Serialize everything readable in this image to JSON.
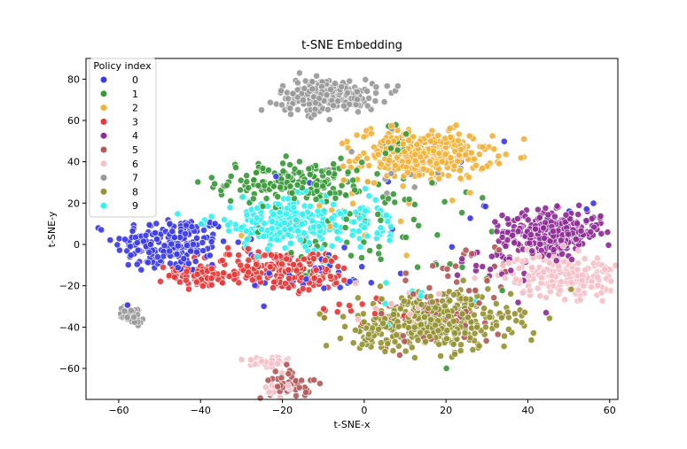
{
  "chart_data": {
    "type": "scatter",
    "title": "t-SNE Embedding",
    "xlabel": "t-SNE-x",
    "ylabel": "t-SNE-y",
    "xlim": [
      -68,
      62
    ],
    "ylim": [
      -75,
      90
    ],
    "x_ticks": [
      -60,
      -40,
      -20,
      0,
      20,
      40,
      60
    ],
    "y_ticks": [
      -60,
      -40,
      -20,
      0,
      20,
      40,
      60,
      80
    ],
    "x_tick_labels": [
      "−60",
      "−40",
      "−20",
      "0",
      "20",
      "40",
      "60"
    ],
    "y_tick_labels": [
      "−60",
      "−40",
      "−20",
      "0",
      "20",
      "40",
      "60",
      "80"
    ],
    "grid": false,
    "legend": {
      "title": "Policy index",
      "position": "top-left"
    },
    "series": [
      {
        "name": "0",
        "color": "#3b3bea",
        "clusters": [
          {
            "cx": -47,
            "cy": 0,
            "sx": 7,
            "sy": 7,
            "n": 200
          },
          {
            "cx": -12,
            "cy": -16,
            "sx": 8,
            "sy": 6,
            "n": 30
          },
          {
            "cx": 22,
            "cy": 15,
            "sx": 20,
            "sy": 15,
            "n": 20
          }
        ]
      },
      {
        "name": "1",
        "color": "#3a9a3a",
        "clusters": [
          {
            "cx": -18,
            "cy": 30,
            "sx": 9,
            "sy": 5,
            "n": 170
          },
          {
            "cx": -5,
            "cy": 10,
            "sx": 10,
            "sy": 10,
            "n": 50
          },
          {
            "cx": 8,
            "cy": 48,
            "sx": 3,
            "sy": 5,
            "n": 18
          },
          {
            "cx": 20,
            "cy": -5,
            "sx": 15,
            "sy": 20,
            "n": 25
          }
        ]
      },
      {
        "name": "2",
        "color": "#f2b23a",
        "clusters": [
          {
            "cx": 15,
            "cy": 43,
            "sx": 8,
            "sy": 6,
            "n": 320
          },
          {
            "cx": 8,
            "cy": 50,
            "sx": 4,
            "sy": 5,
            "n": 30
          },
          {
            "cx": -5,
            "cy": 15,
            "sx": 12,
            "sy": 10,
            "n": 15
          }
        ]
      },
      {
        "name": "3",
        "color": "#e83838",
        "clusters": [
          {
            "cx": -40,
            "cy": -15,
            "sx": 4,
            "sy": 3,
            "n": 70
          },
          {
            "cx": -25,
            "cy": -12,
            "sx": 7,
            "sy": 5,
            "n": 120
          },
          {
            "cx": -13,
            "cy": -13,
            "sx": 5,
            "sy": 5,
            "n": 80
          },
          {
            "cx": 0,
            "cy": -30,
            "sx": 6,
            "sy": 4,
            "n": 15
          }
        ]
      },
      {
        "name": "4",
        "color": "#8e2c96",
        "clusters": [
          {
            "cx": 46,
            "cy": 6,
            "sx": 6,
            "sy": 5,
            "n": 300
          },
          {
            "cx": 32,
            "cy": -10,
            "sx": 6,
            "sy": 8,
            "n": 30
          }
        ]
      },
      {
        "name": "5",
        "color": "#b35a5a",
        "clusters": [
          {
            "cx": -18,
            "cy": -67,
            "sx": 2.5,
            "sy": 4,
            "n": 45
          },
          {
            "cx": 18,
            "cy": -35,
            "sx": 8,
            "sy": 7,
            "n": 70
          },
          {
            "cx": 25,
            "cy": -15,
            "sx": 8,
            "sy": 8,
            "n": 20
          }
        ]
      },
      {
        "name": "6",
        "color": "#f6c0c8",
        "clusters": [
          {
            "cx": 48,
            "cy": -15,
            "sx": 7,
            "sy": 5,
            "n": 210
          },
          {
            "cx": -24,
            "cy": -57,
            "sx": 3,
            "sy": 2,
            "n": 35
          },
          {
            "cx": -20,
            "cy": -70,
            "sx": 2,
            "sy": 2,
            "n": 25
          },
          {
            "cx": 10,
            "cy": -30,
            "sx": 6,
            "sy": 6,
            "n": 15
          }
        ]
      },
      {
        "name": "7",
        "color": "#999999",
        "clusters": [
          {
            "cx": -9,
            "cy": 72,
            "sx": 6,
            "sy": 4,
            "n": 230
          },
          {
            "cx": -57,
            "cy": -34,
            "sx": 1.5,
            "sy": 2,
            "n": 40
          },
          {
            "cx": 10,
            "cy": 40,
            "sx": 8,
            "sy": 10,
            "n": 15
          }
        ]
      },
      {
        "name": "8",
        "color": "#959432",
        "clusters": [
          {
            "cx": 18,
            "cy": -37,
            "sx": 9,
            "sy": 7,
            "n": 380
          },
          {
            "cx": 3,
            "cy": -42,
            "sx": 4,
            "sy": 4,
            "n": 40
          }
        ]
      },
      {
        "name": "9",
        "color": "#33f0f0",
        "clusters": [
          {
            "cx": -18,
            "cy": 10,
            "sx": 10,
            "sy": 6,
            "n": 230
          },
          {
            "cx": 0,
            "cy": 10,
            "sx": 4,
            "sy": 4,
            "n": 30
          },
          {
            "cx": 15,
            "cy": -30,
            "sx": 8,
            "sy": 10,
            "n": 10
          }
        ]
      }
    ]
  }
}
